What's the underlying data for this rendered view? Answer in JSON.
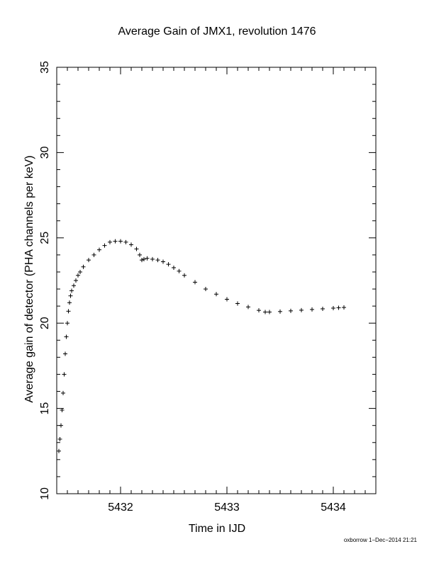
{
  "chart_data": {
    "type": "scatter",
    "title": "Average Gain of JMX1, revolution 1476",
    "xlabel": "Time in IJD",
    "ylabel": "Average gain of detector (PHA channels per keV)",
    "xlim": [
      5431.4,
      5434.4
    ],
    "ylim": [
      10,
      35
    ],
    "x_ticks": [
      5432,
      5433,
      5434
    ],
    "y_ticks": [
      10,
      15,
      20,
      25,
      30,
      35
    ],
    "marker": "plus",
    "grid": false,
    "footer": "oxborrow 1−Dec−2014 21:21",
    "series": [
      {
        "x": [
          5431.42,
          5431.43,
          5431.44,
          5431.45,
          5431.46,
          5431.47,
          5431.48,
          5431.49,
          5431.5,
          5431.51,
          5431.52,
          5431.53,
          5431.54,
          5431.56,
          5431.58,
          5431.6,
          5431.62,
          5431.65,
          5431.7,
          5431.75,
          5431.8,
          5431.85,
          5431.9,
          5431.95,
          5432.0,
          5432.05,
          5432.1,
          5432.15,
          5432.18,
          5432.2,
          5432.22,
          5432.25,
          5432.3,
          5432.35,
          5432.4,
          5432.45,
          5432.5,
          5432.55,
          5432.6,
          5432.7,
          5432.8,
          5432.9,
          5433.0,
          5433.1,
          5433.2,
          5433.3,
          5433.36,
          5433.4,
          5433.5,
          5433.6,
          5433.7,
          5433.8,
          5433.9,
          5434.0,
          5434.05,
          5434.1
        ],
        "y": [
          12.5,
          13.2,
          14.0,
          14.9,
          15.9,
          17.0,
          18.2,
          19.2,
          20.0,
          20.7,
          21.2,
          21.6,
          21.9,
          22.2,
          22.5,
          22.8,
          23.0,
          23.3,
          23.7,
          24.0,
          24.3,
          24.55,
          24.75,
          24.8,
          24.8,
          24.75,
          24.6,
          24.35,
          24.0,
          23.7,
          23.75,
          23.8,
          23.75,
          23.7,
          23.6,
          23.45,
          23.25,
          23.05,
          22.8,
          22.4,
          22.0,
          21.7,
          21.4,
          21.15,
          20.95,
          20.75,
          20.65,
          20.65,
          20.68,
          20.72,
          20.76,
          20.8,
          20.84,
          20.88,
          20.9,
          20.92
        ]
      }
    ]
  }
}
